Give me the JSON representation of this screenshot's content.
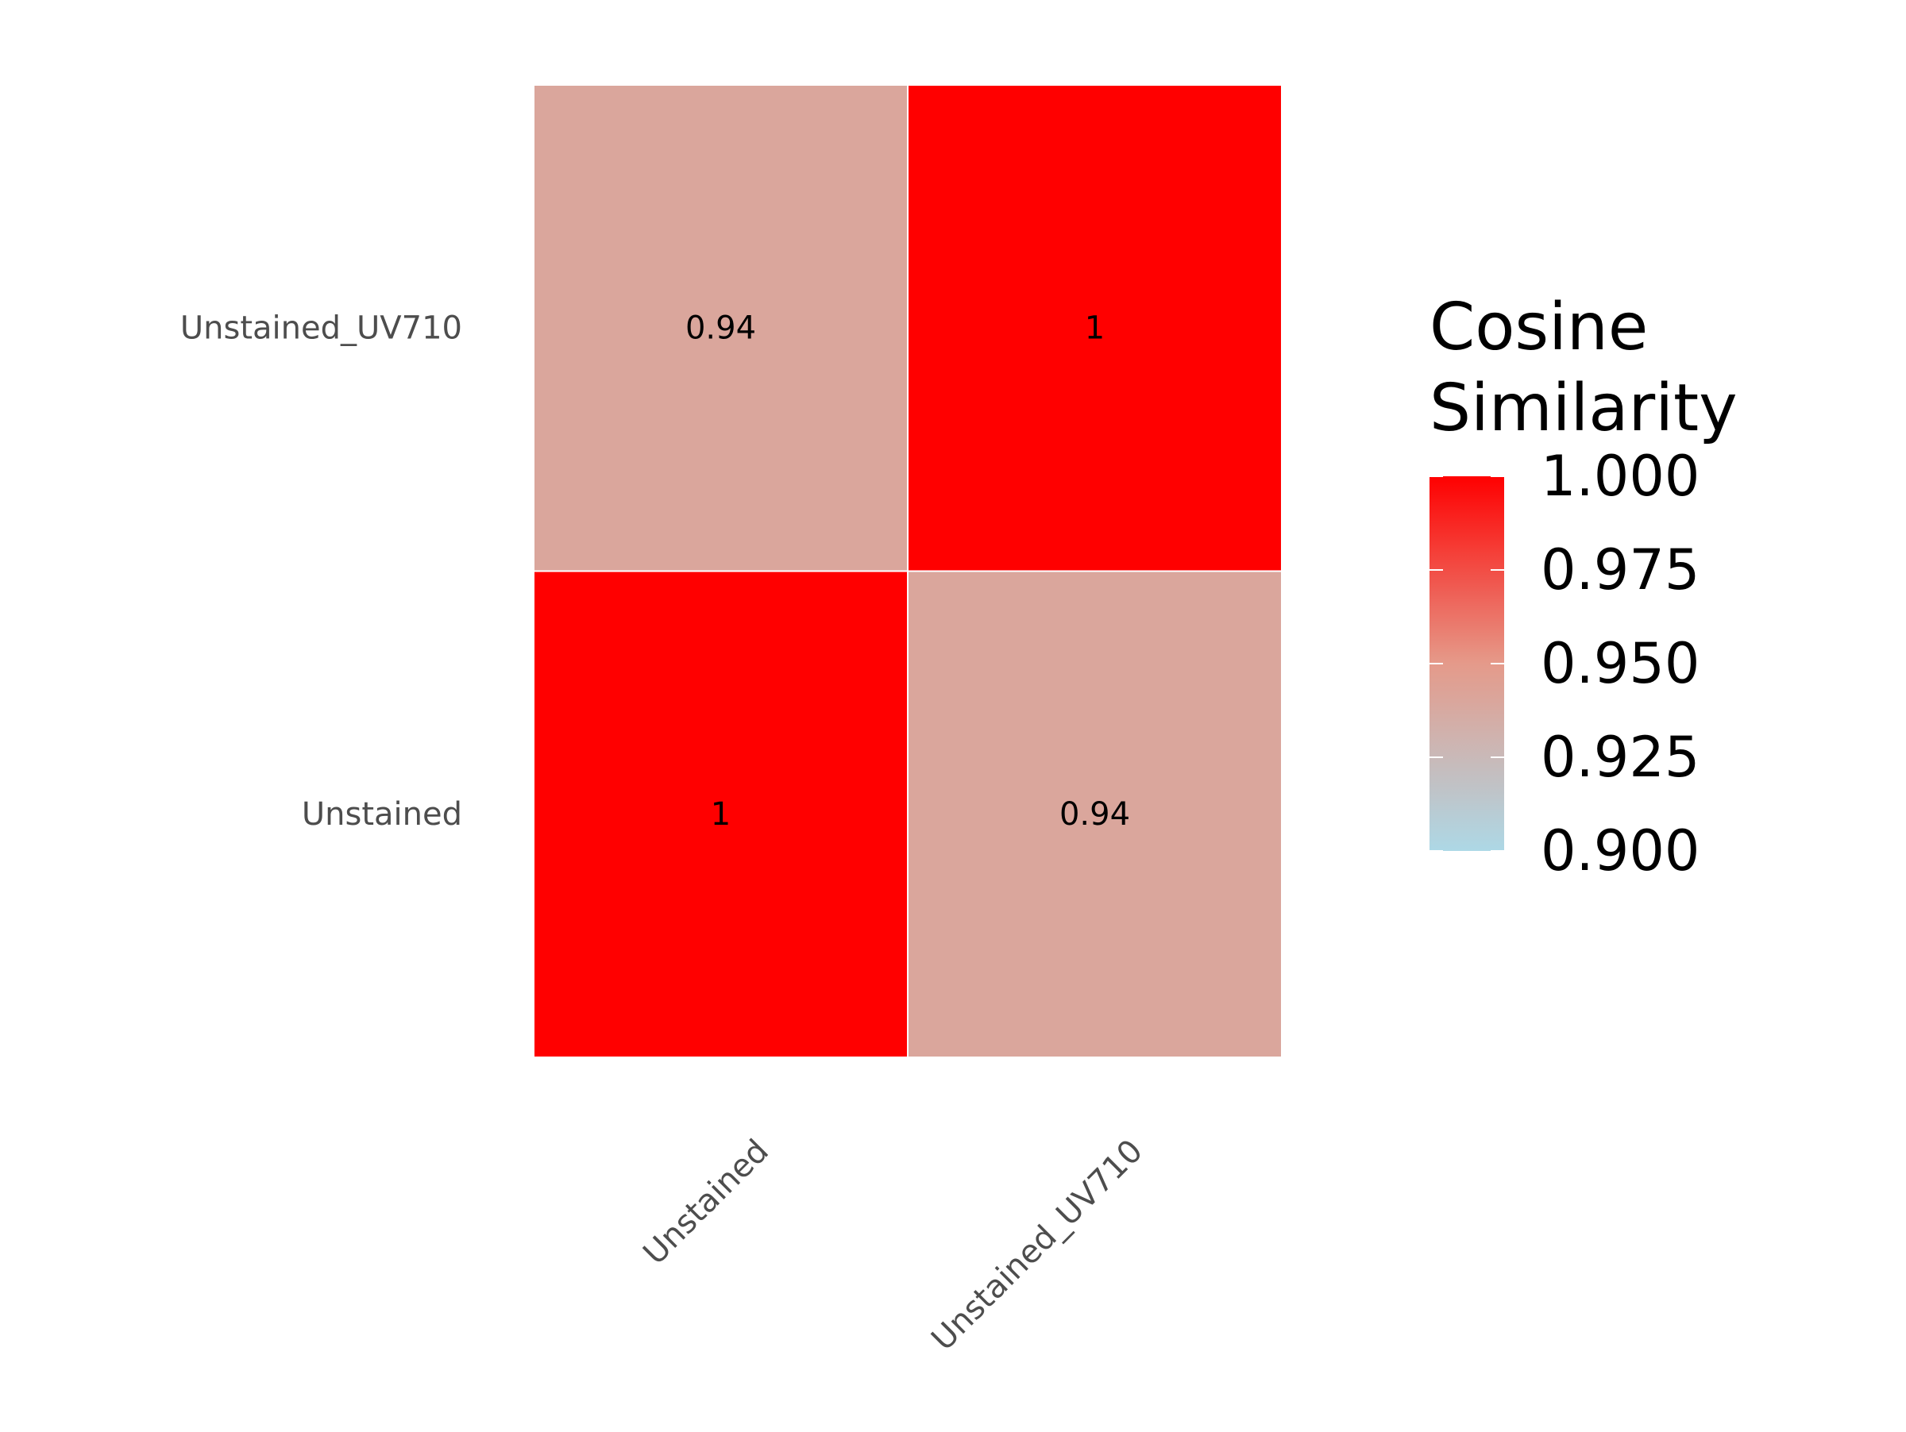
{
  "chart_data": {
    "type": "heatmap",
    "x_categories": [
      "Unstained",
      "Unstained_UV710"
    ],
    "y_categories": [
      "Unstained",
      "Unstained_UV710"
    ],
    "cells": [
      {
        "x": "Unstained",
        "y": "Unstained",
        "value": 1,
        "label": "1"
      },
      {
        "x": "Unstained_UV710",
        "y": "Unstained",
        "value": 0.94,
        "label": "0.94"
      },
      {
        "x": "Unstained",
        "y": "Unstained_UV710",
        "value": 0.94,
        "label": "0.94"
      },
      {
        "x": "Unstained_UV710",
        "y": "Unstained_UV710",
        "value": 1,
        "label": "1"
      }
    ],
    "xlabel": "",
    "ylabel": "",
    "grid": false,
    "colorbar": {
      "title_lines": [
        "Cosine",
        "Similarity"
      ],
      "min": 0.9,
      "max": 1.0,
      "midpoint": 0.95,
      "low_color": "#ADD8E6",
      "mid_color": "#E59A8A",
      "high_color": "#FF0000",
      "ticks": [
        1.0,
        0.975,
        0.95,
        0.925,
        0.9
      ],
      "tick_labels": [
        "1.000",
        "0.975",
        "0.950",
        "0.925",
        "0.900"
      ],
      "placement": "right"
    }
  }
}
